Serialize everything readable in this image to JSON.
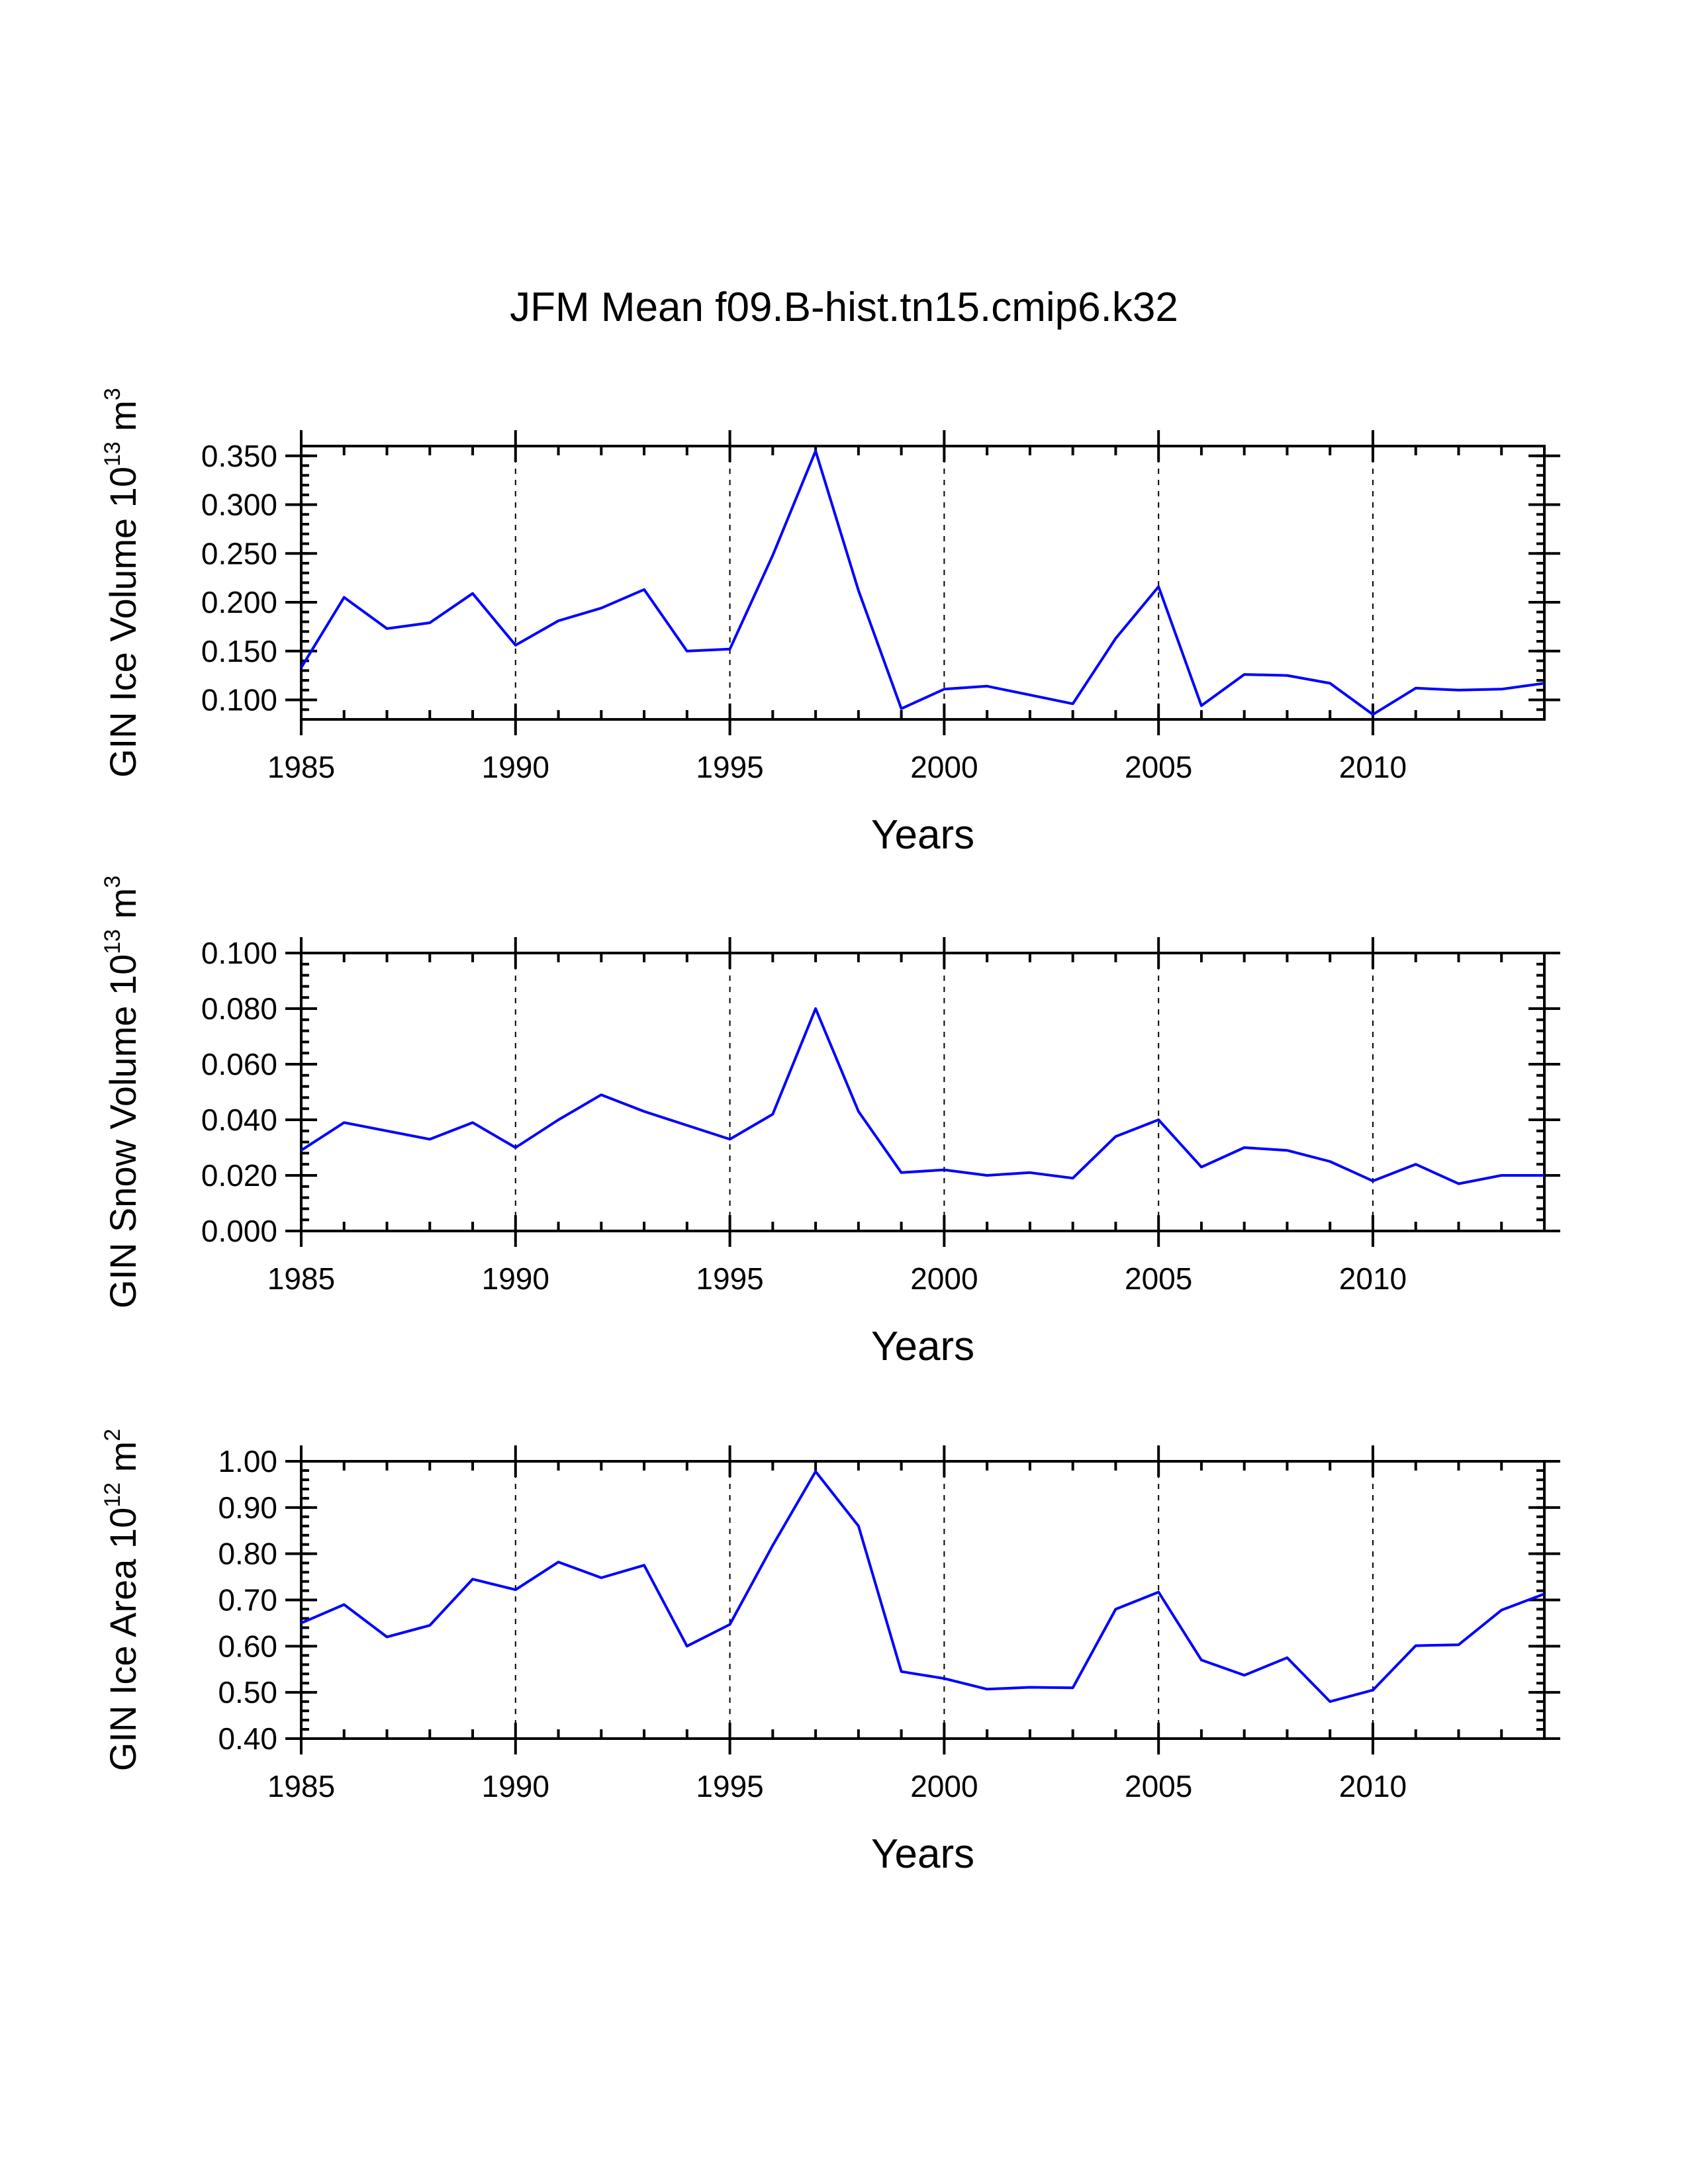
{
  "title": "JFM Mean f09.B-hist.tn15.cmip6.k32",
  "colors": {
    "line": "#0000ff",
    "axis": "#000000"
  },
  "chart_data": [
    {
      "type": "line",
      "ylabel": {
        "main": "GIN Ice Volume 10",
        "exp": "13",
        "unit": " m",
        "unit_exp": "3"
      },
      "xlabel": "Years",
      "x": [
        1985,
        1986,
        1987,
        1988,
        1989,
        1990,
        1991,
        1992,
        1993,
        1994,
        1995,
        1996,
        1997,
        1998,
        1999,
        2000,
        2001,
        2002,
        2003,
        2004,
        2005,
        2006,
        2007,
        2008,
        2009,
        2010,
        2011,
        2012,
        2013,
        2014
      ],
      "values": [
        0.133,
        0.205,
        0.173,
        0.179,
        0.209,
        0.156,
        0.181,
        0.194,
        0.213,
        0.15,
        0.152,
        0.248,
        0.355,
        0.212,
        0.091,
        0.111,
        0.114,
        0.105,
        0.096,
        0.163,
        0.216,
        0.094,
        0.126,
        0.125,
        0.117,
        0.085,
        0.112,
        0.11,
        0.111,
        0.117
      ],
      "xlim": [
        1985,
        2014
      ],
      "ylim": [
        0.08,
        0.36
      ],
      "yticks": [
        0.1,
        0.15,
        0.2,
        0.25,
        0.3,
        0.35
      ],
      "yticklabels": [
        "0.100",
        "0.150",
        "0.200",
        "0.250",
        "0.300",
        "0.350"
      ],
      "xticks": [
        1985,
        1990,
        1995,
        2000,
        2005,
        2010
      ],
      "xticklabels": [
        "1985",
        "1990",
        "1995",
        "2000",
        "2005",
        "2010"
      ],
      "ygrid_minor_step": 0.01,
      "gridlines_x": [
        1990,
        1995,
        2000,
        2005,
        2010
      ]
    },
    {
      "type": "line",
      "ylabel": {
        "main": "GIN Snow Volume 10",
        "exp": "13",
        "unit": " m",
        "unit_exp": "3"
      },
      "xlabel": "Years",
      "x": [
        1985,
        1986,
        1987,
        1988,
        1989,
        1990,
        1991,
        1992,
        1993,
        1994,
        1995,
        1996,
        1997,
        1998,
        1999,
        2000,
        2001,
        2002,
        2003,
        2004,
        2005,
        2006,
        2007,
        2008,
        2009,
        2010,
        2011,
        2012,
        2013,
        2014
      ],
      "values": [
        0.029,
        0.039,
        0.036,
        0.033,
        0.039,
        0.03,
        0.04,
        0.049,
        0.043,
        0.038,
        0.033,
        0.042,
        0.08,
        0.043,
        0.021,
        0.022,
        0.02,
        0.021,
        0.019,
        0.034,
        0.04,
        0.023,
        0.03,
        0.029,
        0.025,
        0.018,
        0.024,
        0.017,
        0.02,
        0.02
      ],
      "xlim": [
        1985,
        2014
      ],
      "ylim": [
        0.0,
        0.1
      ],
      "yticks": [
        0.0,
        0.02,
        0.04,
        0.06,
        0.08,
        0.1
      ],
      "yticklabels": [
        "0.000",
        "0.020",
        "0.040",
        "0.060",
        "0.080",
        "0.100"
      ],
      "xticks": [
        1985,
        1990,
        1995,
        2000,
        2005,
        2010
      ],
      "xticklabels": [
        "1985",
        "1990",
        "1995",
        "2000",
        "2005",
        "2010"
      ],
      "ygrid_minor_step": 0.004,
      "gridlines_x": [
        1990,
        1995,
        2000,
        2005,
        2010
      ]
    },
    {
      "type": "line",
      "ylabel": {
        "main": "GIN Ice Area 10",
        "exp": "12",
        "unit": " m",
        "unit_exp": "2"
      },
      "xlabel": "Years",
      "x": [
        1985,
        1986,
        1987,
        1988,
        1989,
        1990,
        1991,
        1992,
        1993,
        1994,
        1995,
        1996,
        1997,
        1998,
        1999,
        2000,
        2001,
        2002,
        2003,
        2004,
        2005,
        2006,
        2007,
        2008,
        2009,
        2010,
        2011,
        2012,
        2013,
        2014
      ],
      "values": [
        0.65,
        0.69,
        0.62,
        0.645,
        0.745,
        0.722,
        0.782,
        0.748,
        0.775,
        0.6,
        0.647,
        0.818,
        0.978,
        0.86,
        0.545,
        0.53,
        0.507,
        0.511,
        0.51,
        0.68,
        0.717,
        0.57,
        0.537,
        0.575,
        0.48,
        0.505,
        0.601,
        0.603,
        0.678,
        0.713
      ],
      "xlim": [
        1985,
        2014
      ],
      "ylim": [
        0.4,
        1.0
      ],
      "yticks": [
        0.4,
        0.5,
        0.6,
        0.7,
        0.8,
        0.9,
        1.0
      ],
      "yticklabels": [
        "0.40",
        "0.50",
        "0.60",
        "0.70",
        "0.80",
        "0.90",
        "1.00"
      ],
      "xticks": [
        1985,
        1990,
        1995,
        2000,
        2005,
        2010
      ],
      "xticklabels": [
        "1985",
        "1990",
        "1995",
        "2000",
        "2005",
        "2010"
      ],
      "ygrid_minor_step": 0.02,
      "gridlines_x": [
        1990,
        1995,
        2000,
        2005,
        2010
      ]
    }
  ]
}
